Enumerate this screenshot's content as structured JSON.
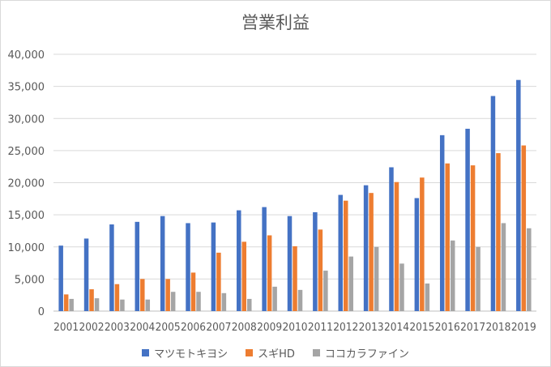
{
  "chart_data": {
    "type": "bar",
    "title": "営業利益",
    "categories": [
      "2001",
      "2002",
      "2003",
      "2004",
      "2005",
      "2006",
      "2007",
      "2008",
      "2009",
      "2010",
      "2011",
      "2012",
      "2013",
      "2014",
      "2015",
      "2016",
      "2017",
      "2018",
      "2019"
    ],
    "series": [
      {
        "name": "マツモトキヨシ",
        "color": "#4472C4",
        "values": [
          10200,
          11300,
          13500,
          13900,
          14800,
          13700,
          13800,
          15700,
          16200,
          14800,
          15400,
          18100,
          19600,
          22400,
          17600,
          27400,
          28400,
          33500,
          36000
        ]
      },
      {
        "name": "スギHD",
        "color": "#ED7D31",
        "values": [
          2600,
          3400,
          4200,
          5000,
          5000,
          6000,
          9100,
          10800,
          11800,
          10100,
          12700,
          17200,
          18400,
          20100,
          20800,
          23000,
          22700,
          24600,
          25800
        ]
      },
      {
        "name": "ココカラファイン",
        "color": "#A5A5A5",
        "values": [
          1900,
          2000,
          1800,
          1800,
          3000,
          3000,
          2800,
          1900,
          3800,
          3300,
          6300,
          8500,
          10000,
          7400,
          4300,
          11000,
          10000,
          13700,
          12900
        ]
      }
    ],
    "ylim": [
      0,
      40000
    ],
    "yticks": [
      "0",
      "5,000",
      "10,000",
      "15,000",
      "20,000",
      "25,000",
      "30,000",
      "35,000",
      "40,000"
    ],
    "ytick_values": [
      0,
      5000,
      10000,
      15000,
      20000,
      25000,
      30000,
      35000,
      40000
    ],
    "grid": true,
    "legend_position": "bottom"
  }
}
